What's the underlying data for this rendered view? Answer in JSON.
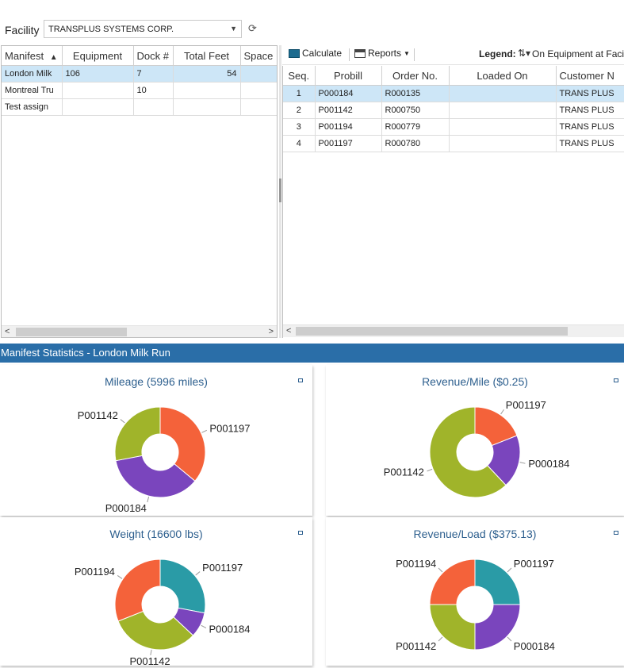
{
  "facility": {
    "label": "Facility",
    "selected": "TRANSPLUS SYSTEMS CORP."
  },
  "manifest_grid": {
    "columns": [
      "Manifest",
      "Equipment",
      "Dock #",
      "Total Feet",
      "Space"
    ],
    "sort_indicator": "▲",
    "rows": [
      [
        "London Milk",
        "106",
        "7",
        "54",
        ""
      ],
      [
        "Montreal Tru",
        "",
        "10",
        "",
        ""
      ],
      [
        "Test assign",
        "",
        "",
        "",
        ""
      ]
    ],
    "selected_row": 0
  },
  "toolbar": {
    "calculate_label": "Calculate",
    "reports_label": "Reports",
    "legend_label": "Legend:",
    "legend_text": "On Equipment at Facil"
  },
  "stops_grid": {
    "columns": [
      "Seq.",
      "Probill",
      "Order No.",
      "Loaded On",
      "Customer N"
    ],
    "rows": [
      [
        "1",
        "P000184",
        "R000135",
        "",
        "TRANS PLUS"
      ],
      [
        "2",
        "P001142",
        "R000750",
        "",
        "TRANS PLUS"
      ],
      [
        "3",
        "P001194",
        "R000779",
        "",
        "TRANS PLUS"
      ],
      [
        "4",
        "P001197",
        "R000780",
        "",
        "TRANS PLUS"
      ]
    ],
    "selected_row": 0
  },
  "stats": {
    "header": "Manifest Statistics - London Milk Run"
  },
  "colors": {
    "P001197": "#f4623a",
    "P000184": "#7a45bd",
    "P001142": "#a0b42a",
    "P001194": "#f4623a",
    "P001197_teal": "#2a9ba6",
    "header_blue": "#2a6ea8"
  },
  "chart_data": [
    {
      "type": "pie",
      "title": "Mileage (5996 miles)",
      "slices": [
        {
          "label": "P001197",
          "value": 36,
          "color": "#f4623a"
        },
        {
          "label": "P000184",
          "value": 36,
          "color": "#7a45bd"
        },
        {
          "label": "P001142",
          "value": 28,
          "color": "#a0b42a"
        }
      ]
    },
    {
      "type": "pie",
      "title": "Revenue/Mile ($0.25)",
      "slices": [
        {
          "label": "P001197",
          "value": 19,
          "color": "#f4623a"
        },
        {
          "label": "P000184",
          "value": 19,
          "color": "#7a45bd"
        },
        {
          "label": "P001142",
          "value": 62,
          "color": "#a0b42a"
        }
      ]
    },
    {
      "type": "pie",
      "title": "Weight (16600 lbs)",
      "slices": [
        {
          "label": "P001197",
          "value": 28,
          "color": "#2a9ba6"
        },
        {
          "label": "P000184",
          "value": 9,
          "color": "#7a45bd"
        },
        {
          "label": "P001142",
          "value": 32,
          "color": "#a0b42a"
        },
        {
          "label": "P001194",
          "value": 31,
          "color": "#f4623a"
        }
      ]
    },
    {
      "type": "pie",
      "title": "Revenue/Load ($375.13)",
      "slices": [
        {
          "label": "P001197",
          "value": 25,
          "color": "#2a9ba6"
        },
        {
          "label": "P000184",
          "value": 25,
          "color": "#7a45bd"
        },
        {
          "label": "P001142",
          "value": 25,
          "color": "#a0b42a"
        },
        {
          "label": "P001194",
          "value": 25,
          "color": "#f4623a"
        }
      ]
    }
  ]
}
